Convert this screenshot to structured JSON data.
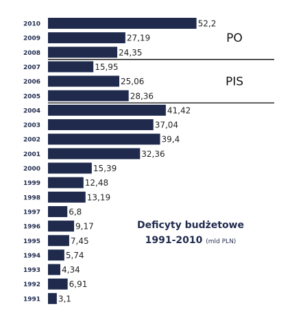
{
  "chart_data": {
    "type": "bar",
    "orientation": "horizontal",
    "title_line1": "Deficyty budżetowe",
    "title_line2": "1991-2010",
    "unit": "(mld PLN)",
    "categories": [
      "2010",
      "2009",
      "2008",
      "2007",
      "2006",
      "2005",
      "2004",
      "2003",
      "2002",
      "2001",
      "2000",
      "1999",
      "1998",
      "1997",
      "1996",
      "1995",
      "1994",
      "1993",
      "1992",
      "1991"
    ],
    "values": [
      52.2,
      27.19,
      24.35,
      15.95,
      25.06,
      28.36,
      41.42,
      37.04,
      39.4,
      32.36,
      15.39,
      12.48,
      13.19,
      6.8,
      9.17,
      7.45,
      5.74,
      4.34,
      6.91,
      3.1
    ],
    "value_labels": [
      "52,2",
      "27,19",
      "24,35",
      "15,95",
      "25,06",
      "28,36",
      "41,42",
      "37,04",
      "39,4",
      "32,36",
      "15,39",
      "12,48",
      "13,19",
      "6,8",
      "9,17",
      "7,45",
      "5,74",
      "4,34",
      "6,91",
      "3,1"
    ],
    "groups": [
      {
        "label": "PO",
        "from": "2010",
        "to": "2008"
      },
      {
        "label": "PIS",
        "from": "2007",
        "to": "2005"
      }
    ],
    "bar_color": "#1f2a4d",
    "grid": false
  }
}
